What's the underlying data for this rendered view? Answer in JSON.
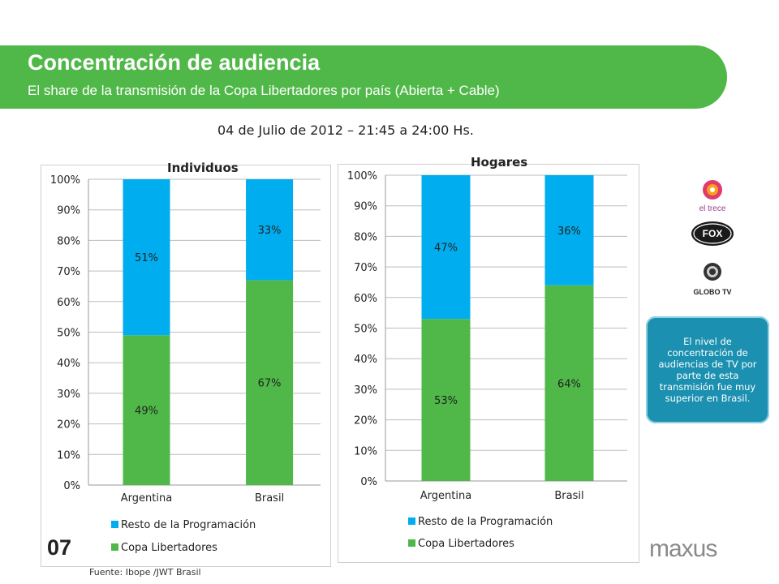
{
  "header": {
    "title": "Concentración de audiencia",
    "subtitle": "El share de la transmisión de la Copa Libertadores por país (Abierta + Cable)"
  },
  "date_line": "04 de Julio de 2012 – 21:45 a 24:00 Hs.",
  "callout": "El nivel de concentración de audiencias de TV por parte de esta transmisión fue muy superior en Brasil.",
  "footer": {
    "page_number": "07",
    "source": "Fuente: Ibope /JWT Brasil",
    "brand": "maxus"
  },
  "logos": [
    {
      "name": "el-trece-logo",
      "text": "el trece"
    },
    {
      "name": "fox-sports-logo",
      "text": "FOX"
    },
    {
      "name": "globo-tv-logo",
      "text": "GLOBO TV"
    }
  ],
  "colors": {
    "banner": "#50b848",
    "copa": "#4fb848",
    "resto": "#00aeef",
    "callout": "#1b90b0"
  },
  "chart_data": [
    {
      "type": "bar",
      "stacked": true,
      "title": "Individuos",
      "categories": [
        "Argentina",
        "Brasil"
      ],
      "ylim": [
        0,
        100
      ],
      "yticks": [
        "0%",
        "10%",
        "20%",
        "30%",
        "40%",
        "50%",
        "60%",
        "70%",
        "80%",
        "90%",
        "100%"
      ],
      "series": [
        {
          "name": "Copa Libertadores",
          "values": [
            49,
            67
          ],
          "labels": [
            "49%",
            "67%"
          ]
        },
        {
          "name": "Resto de la Programación",
          "values": [
            51,
            33
          ],
          "labels": [
            "51%",
            "33%"
          ]
        }
      ],
      "legend": [
        "Resto de la Programación",
        "Copa Libertadores"
      ],
      "legend_position": "bottom"
    },
    {
      "type": "bar",
      "stacked": true,
      "title": "Hogares",
      "categories": [
        "Argentina",
        "Brasil"
      ],
      "ylim": [
        0,
        100
      ],
      "yticks": [
        "0%",
        "10%",
        "20%",
        "30%",
        "40%",
        "50%",
        "60%",
        "70%",
        "80%",
        "90%",
        "100%"
      ],
      "series": [
        {
          "name": "Copa Libertadores",
          "values": [
            53,
            64
          ],
          "labels": [
            "53%",
            "64%"
          ]
        },
        {
          "name": "Resto de la Programación",
          "values": [
            47,
            36
          ],
          "labels": [
            "47%",
            "36%"
          ]
        }
      ],
      "legend": [
        "Resto de la Programación",
        "Copa Libertadores"
      ],
      "legend_position": "bottom"
    }
  ]
}
